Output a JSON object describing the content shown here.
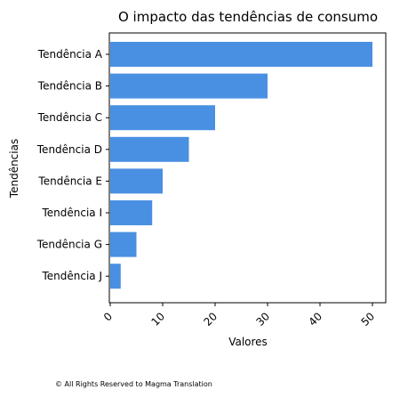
{
  "chart_data": {
    "type": "bar",
    "orientation": "horizontal",
    "title": "O impacto das tendências de consumo",
    "xlabel": "Valores",
    "ylabel": "Tendências",
    "categories": [
      "Tendência A",
      "Tendência B",
      "Tendência C",
      "Tendência D",
      "Tendência E",
      "Tendência I",
      "Tendência G",
      "Tendência J"
    ],
    "values": [
      50,
      30,
      20,
      15,
      10,
      8,
      5,
      2
    ],
    "xlim": [
      0,
      52.5
    ],
    "xticks": [
      0,
      10,
      20,
      30,
      40,
      50
    ],
    "xtick_rotation": 45,
    "bar_color": "#4a90e2",
    "grid": false
  },
  "footer": {
    "copyright": "© All Rights Reserved to Magma Translation"
  }
}
